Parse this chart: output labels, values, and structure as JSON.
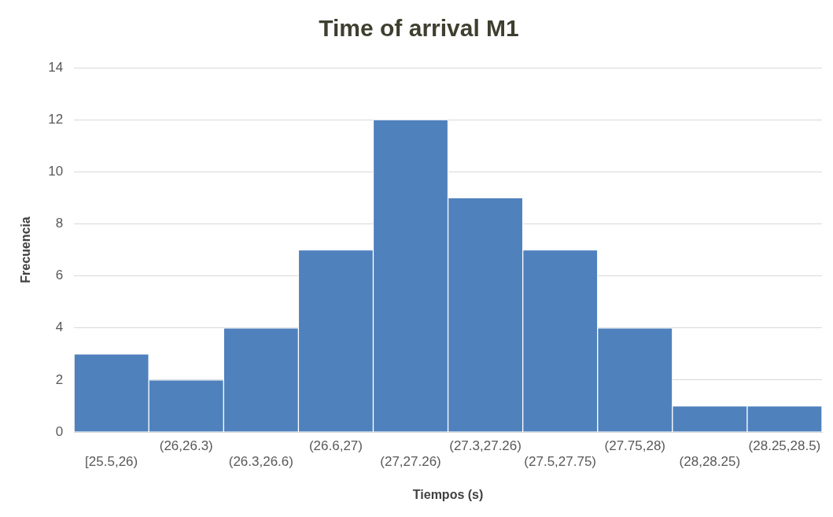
{
  "chart_data": {
    "type": "bar",
    "title": "Time of arrival M1",
    "xlabel": "Tiempos (s)",
    "ylabel": "Frecuencia",
    "categories": [
      "[25.5,26)",
      "(26,26.3)",
      "(26.3,26.6)",
      "(26.6,27)",
      "(27,27.26)",
      "(27.3,27.26)",
      "(27.5,27.75)",
      "(27.75,28)",
      "(28,28.25)",
      "(28.25,28.5)"
    ],
    "values": [
      3,
      2,
      4,
      7,
      12,
      9,
      7,
      4,
      1,
      1
    ],
    "color": "#4f81bd",
    "ylim": [
      0,
      14
    ],
    "yticks": [
      0,
      2,
      4,
      6,
      8,
      10,
      12,
      14
    ],
    "grid": "y"
  }
}
